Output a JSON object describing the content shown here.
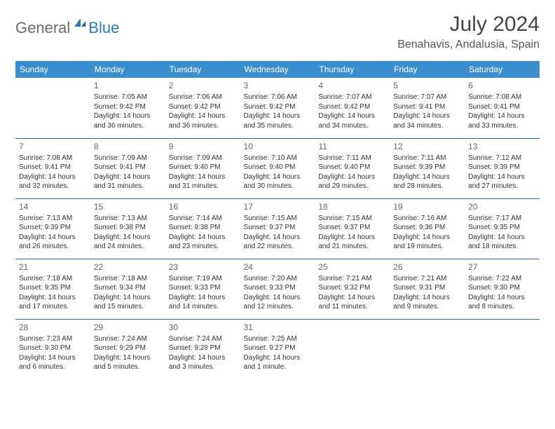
{
  "brand": {
    "name1": "General",
    "name2": "Blue"
  },
  "title": {
    "month": "July 2024",
    "location": "Benahavis, Andalusia, Spain"
  },
  "colors": {
    "header_bg": "#3c8fcf",
    "header_text": "#ffffff",
    "row_divider": "#2f6da8",
    "daynum": "#666666",
    "body_text": "#333333",
    "brand_gray": "#6a6a6a",
    "brand_blue": "#2a78c0",
    "page_bg": "#ffffff"
  },
  "typography": {
    "month_title_fontsize": 30,
    "location_fontsize": 16,
    "weekday_fontsize": 12,
    "daynum_fontsize": 12,
    "cell_fontsize": 10
  },
  "weekdays": [
    "Sunday",
    "Monday",
    "Tuesday",
    "Wednesday",
    "Thursday",
    "Friday",
    "Saturday"
  ],
  "weeks": [
    [
      null,
      {
        "n": "1",
        "sunrise": "7:05 AM",
        "sunset": "9:42 PM",
        "daylight": "14 hours and 36 minutes."
      },
      {
        "n": "2",
        "sunrise": "7:06 AM",
        "sunset": "9:42 PM",
        "daylight": "14 hours and 36 minutes."
      },
      {
        "n": "3",
        "sunrise": "7:06 AM",
        "sunset": "9:42 PM",
        "daylight": "14 hours and 35 minutes."
      },
      {
        "n": "4",
        "sunrise": "7:07 AM",
        "sunset": "9:42 PM",
        "daylight": "14 hours and 34 minutes."
      },
      {
        "n": "5",
        "sunrise": "7:07 AM",
        "sunset": "9:41 PM",
        "daylight": "14 hours and 34 minutes."
      },
      {
        "n": "6",
        "sunrise": "7:08 AM",
        "sunset": "9:41 PM",
        "daylight": "14 hours and 33 minutes."
      }
    ],
    [
      {
        "n": "7",
        "sunrise": "7:08 AM",
        "sunset": "9:41 PM",
        "daylight": "14 hours and 32 minutes."
      },
      {
        "n": "8",
        "sunrise": "7:09 AM",
        "sunset": "9:41 PM",
        "daylight": "14 hours and 31 minutes."
      },
      {
        "n": "9",
        "sunrise": "7:09 AM",
        "sunset": "9:40 PM",
        "daylight": "14 hours and 31 minutes."
      },
      {
        "n": "10",
        "sunrise": "7:10 AM",
        "sunset": "9:40 PM",
        "daylight": "14 hours and 30 minutes."
      },
      {
        "n": "11",
        "sunrise": "7:11 AM",
        "sunset": "9:40 PM",
        "daylight": "14 hours and 29 minutes."
      },
      {
        "n": "12",
        "sunrise": "7:11 AM",
        "sunset": "9:39 PM",
        "daylight": "14 hours and 28 minutes."
      },
      {
        "n": "13",
        "sunrise": "7:12 AM",
        "sunset": "9:39 PM",
        "daylight": "14 hours and 27 minutes."
      }
    ],
    [
      {
        "n": "14",
        "sunrise": "7:13 AM",
        "sunset": "9:39 PM",
        "daylight": "14 hours and 26 minutes."
      },
      {
        "n": "15",
        "sunrise": "7:13 AM",
        "sunset": "9:38 PM",
        "daylight": "14 hours and 24 minutes."
      },
      {
        "n": "16",
        "sunrise": "7:14 AM",
        "sunset": "9:38 PM",
        "daylight": "14 hours and 23 minutes."
      },
      {
        "n": "17",
        "sunrise": "7:15 AM",
        "sunset": "9:37 PM",
        "daylight": "14 hours and 22 minutes."
      },
      {
        "n": "18",
        "sunrise": "7:15 AM",
        "sunset": "9:37 PM",
        "daylight": "14 hours and 21 minutes."
      },
      {
        "n": "19",
        "sunrise": "7:16 AM",
        "sunset": "9:36 PM",
        "daylight": "14 hours and 19 minutes."
      },
      {
        "n": "20",
        "sunrise": "7:17 AM",
        "sunset": "9:35 PM",
        "daylight": "14 hours and 18 minutes."
      }
    ],
    [
      {
        "n": "21",
        "sunrise": "7:18 AM",
        "sunset": "9:35 PM",
        "daylight": "14 hours and 17 minutes."
      },
      {
        "n": "22",
        "sunrise": "7:18 AM",
        "sunset": "9:34 PM",
        "daylight": "14 hours and 15 minutes."
      },
      {
        "n": "23",
        "sunrise": "7:19 AM",
        "sunset": "9:33 PM",
        "daylight": "14 hours and 14 minutes."
      },
      {
        "n": "24",
        "sunrise": "7:20 AM",
        "sunset": "9:33 PM",
        "daylight": "14 hours and 12 minutes."
      },
      {
        "n": "25",
        "sunrise": "7:21 AM",
        "sunset": "9:32 PM",
        "daylight": "14 hours and 11 minutes."
      },
      {
        "n": "26",
        "sunrise": "7:21 AM",
        "sunset": "9:31 PM",
        "daylight": "14 hours and 9 minutes."
      },
      {
        "n": "27",
        "sunrise": "7:22 AM",
        "sunset": "9:30 PM",
        "daylight": "14 hours and 8 minutes."
      }
    ],
    [
      {
        "n": "28",
        "sunrise": "7:23 AM",
        "sunset": "9:30 PM",
        "daylight": "14 hours and 6 minutes."
      },
      {
        "n": "29",
        "sunrise": "7:24 AM",
        "sunset": "9:29 PM",
        "daylight": "14 hours and 5 minutes."
      },
      {
        "n": "30",
        "sunrise": "7:24 AM",
        "sunset": "9:28 PM",
        "daylight": "14 hours and 3 minutes."
      },
      {
        "n": "31",
        "sunrise": "7:25 AM",
        "sunset": "9:27 PM",
        "daylight": "14 hours and 1 minute."
      },
      null,
      null,
      null
    ]
  ],
  "labels": {
    "sunrise": "Sunrise:",
    "sunset": "Sunset:",
    "daylight": "Daylight:"
  }
}
